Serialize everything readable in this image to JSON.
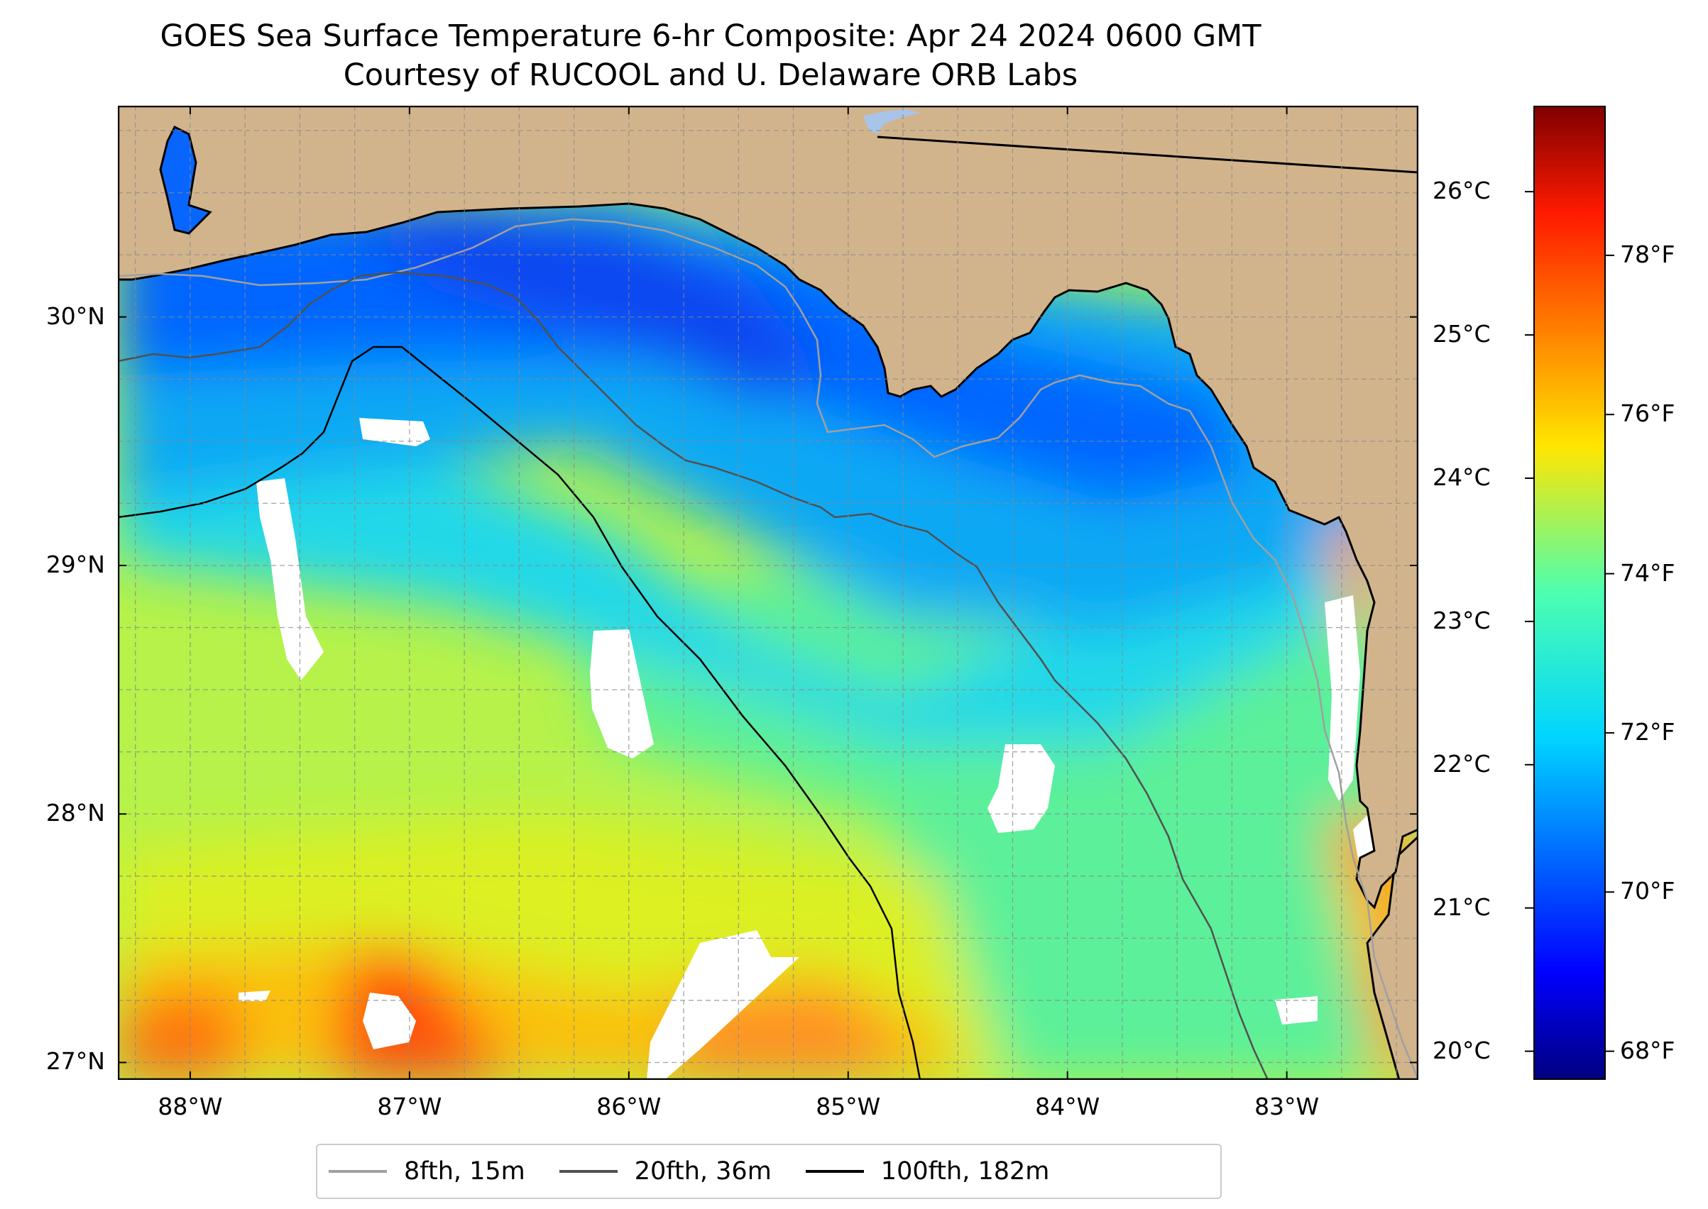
{
  "title": {
    "line1": "GOES Sea Surface Temperature 6-hr Composite: Apr 24 2024 0600 GMT",
    "line2": "Courtesy of RUCOOL and U. Delaware ORB Labs"
  },
  "map": {
    "lat_range": [
      26.93,
      30.85
    ],
    "lon_range": [
      -88.33,
      -82.4
    ],
    "land_color": "#d2b48c",
    "lat_ticks": [
      {
        "value": 27,
        "label": "27°N"
      },
      {
        "value": 28,
        "label": "28°N"
      },
      {
        "value": 29,
        "label": "29°N"
      },
      {
        "value": 30,
        "label": "30°N"
      }
    ],
    "lon_ticks": [
      {
        "value": -88,
        "label": "88°W"
      },
      {
        "value": -87,
        "label": "87°W"
      },
      {
        "value": -86,
        "label": "86°W"
      },
      {
        "value": -85,
        "label": "85°W"
      },
      {
        "value": -84,
        "label": "84°W"
      },
      {
        "value": -83,
        "label": "83°W"
      }
    ],
    "grid": true
  },
  "colorbar": {
    "colormap": "jet",
    "range_c": [
      19.8,
      26.6
    ],
    "celsius_ticks": [
      "20°C",
      "21°C",
      "22°C",
      "23°C",
      "24°C",
      "25°C",
      "26°C"
    ],
    "fahrenheit_ticks": [
      "68°F",
      "70°F",
      "72°F",
      "74°F",
      "76°F",
      "78°F"
    ]
  },
  "legend": {
    "items": [
      {
        "label": "8fth, 15m",
        "color": "#a0a0a0"
      },
      {
        "label": "20fth, 36m",
        "color": "#505050"
      },
      {
        "label": "100fth, 182m",
        "color": "#000000"
      }
    ]
  }
}
